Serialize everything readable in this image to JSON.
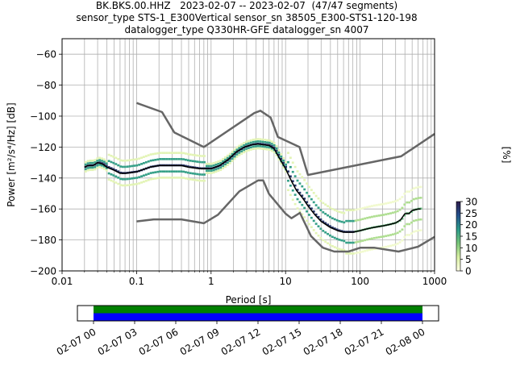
{
  "title": {
    "line1": "BK.BKS.00.HHZ   2023-02-07 -- 2023-02-07  (47/47 segments)",
    "line2": "sensor_type STS-1_E300Vertical sensor_sn 38505_E300-STS1-120-198",
    "line3": "datalogger_type Q330HR-GFE datalogger_sn 4007"
  },
  "colors": {
    "noise_models": "#666666",
    "mean": "#000000",
    "coverage_top": "#008000",
    "coverage_bottom": "#0000ff",
    "colormap": [
      "#ffffe5",
      "#d9f0a3",
      "#78c679",
      "#2b9a8a",
      "#23508c",
      "#2d1a4a"
    ]
  },
  "chart_data": {
    "type": "heatmap",
    "xlabel": "Period [s]",
    "ylabel": "Power [m²/s⁴/Hz] [dB]",
    "xscale": "log",
    "xlim": [
      0.01,
      1000
    ],
    "ylim": [
      -200,
      -50
    ],
    "grid": true,
    "x_ticks": [
      {
        "value": 0.01,
        "label": "0.01"
      },
      {
        "value": 0.1,
        "label": "0.1"
      },
      {
        "value": 1,
        "label": "1"
      },
      {
        "value": 10,
        "label": "10"
      },
      {
        "value": 100,
        "label": "100"
      },
      {
        "value": 1000,
        "label": "1000"
      }
    ],
    "y_ticks": [
      {
        "value": -60,
        "label": "−60"
      },
      {
        "value": -80,
        "label": "−80"
      },
      {
        "value": -100,
        "label": "−100"
      },
      {
        "value": -120,
        "label": "−120"
      },
      {
        "value": -140,
        "label": "−140"
      },
      {
        "value": -160,
        "label": "−160"
      },
      {
        "value": -180,
        "label": "−180"
      },
      {
        "value": -200,
        "label": "−200"
      }
    ],
    "colorbar": {
      "label": "[%]",
      "range": [
        0,
        30
      ],
      "ticks": [
        {
          "value": 0,
          "label": "0"
        },
        {
          "value": 5,
          "label": "5"
        },
        {
          "value": 10,
          "label": "10"
        },
        {
          "value": 15,
          "label": "15"
        },
        {
          "value": 20,
          "label": "20"
        },
        {
          "value": 25,
          "label": "25"
        },
        {
          "value": 30,
          "label": "30"
        }
      ]
    },
    "series": [
      {
        "role": "high_noise_model",
        "x": [
          0.1,
          0.22,
          0.32,
          0.8,
          3.8,
          4.6,
          6.3,
          7.9,
          15.4,
          20,
          354.8,
          1000
        ],
        "y": [
          -91.5,
          -97.4,
          -110.5,
          -120,
          -98,
          -96.5,
          -101,
          -113.5,
          -120,
          -138,
          -126,
          -111.5
        ]
      },
      {
        "role": "low_noise_model",
        "x": [
          0.1,
          0.17,
          0.4,
          0.8,
          1.24,
          2.4,
          4.3,
          5,
          6,
          10,
          12,
          15.6,
          21.9,
          31.6,
          45,
          70,
          101,
          154,
          328,
          600,
          1000
        ],
        "y": [
          -168,
          -166.7,
          -166.7,
          -169.2,
          -163.7,
          -148.6,
          -141.5,
          -141.5,
          -150.3,
          -163,
          -166,
          -162.5,
          -177.5,
          -185,
          -187.5,
          -187.5,
          -185,
          -185,
          -187.5,
          -184.4,
          -178
        ]
      },
      {
        "role": "mean",
        "x": [
          0.02,
          0.022,
          0.026,
          0.03,
          0.035,
          0.04,
          0.05,
          0.06,
          0.07,
          0.1,
          0.15,
          0.2,
          0.3,
          0.4,
          0.5,
          0.7,
          1,
          1.3,
          1.7,
          2.2,
          2.8,
          3.5,
          4.2,
          5,
          6,
          7,
          8,
          10,
          12,
          14,
          17,
          20,
          25,
          30,
          40,
          50,
          60,
          70,
          80,
          100,
          120,
          150,
          200,
          250,
          300,
          350,
          400,
          450,
          500,
          600,
          650
        ],
        "y": [
          -133,
          -132,
          -132,
          -130,
          -131,
          -133,
          -135,
          -137,
          -137,
          -136,
          -133,
          -132,
          -132,
          -132,
          -133,
          -134,
          -134,
          -132,
          -128,
          -123,
          -120,
          -118.5,
          -118,
          -118.5,
          -119,
          -121,
          -126,
          -134,
          -142,
          -148,
          -153,
          -158,
          -164,
          -168,
          -172,
          -174,
          -175,
          -175,
          -175,
          -174,
          -173,
          -172,
          -171,
          -170,
          -169,
          -167,
          -163,
          -163,
          -161,
          -160,
          -160
        ]
      }
    ],
    "coverage_bar": {
      "time_ticks": [
        "02-07 00",
        "02-07 03",
        "02-07 06",
        "02-07 09",
        "02-07 12",
        "02-07 15",
        "02-07 18",
        "02-07 21",
        "02-08 00"
      ],
      "data_span": [
        "02-07 00",
        "02-08 00"
      ]
    }
  }
}
